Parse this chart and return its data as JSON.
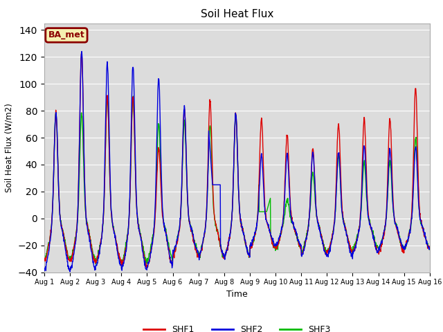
{
  "title": "Soil Heat Flux",
  "xlabel": "Time",
  "ylabel": "Soil Heat Flux (W/m2)",
  "ylim": [
    -40,
    145
  ],
  "yticks": [
    -40,
    -20,
    0,
    20,
    40,
    60,
    80,
    100,
    120,
    140
  ],
  "bg_color": "#dcdcdc",
  "fig_color": "#ffffff",
  "line_colors": {
    "SHF1": "#dd0000",
    "SHF2": "#0000dd",
    "SHF3": "#00bb00"
  },
  "station_label": "BA_met",
  "station_label_bg": "#f5f0b0",
  "station_label_border": "#8b0000",
  "xlim": [
    0,
    15
  ],
  "xtick_positions": [
    0,
    1,
    2,
    3,
    4,
    5,
    6,
    7,
    8,
    9,
    10,
    11,
    12,
    13,
    14,
    15
  ],
  "xtick_labels": [
    "Aug 1",
    "Aug 2",
    "Aug 3",
    "Aug 4",
    "Aug 5",
    "Aug 6",
    "Aug 7",
    "Aug 8",
    "Aug 9",
    "Aug 10",
    "Aug 11",
    "Aug 12",
    "Aug 13",
    "Aug 14",
    "Aug 15",
    "Aug 16"
  ]
}
